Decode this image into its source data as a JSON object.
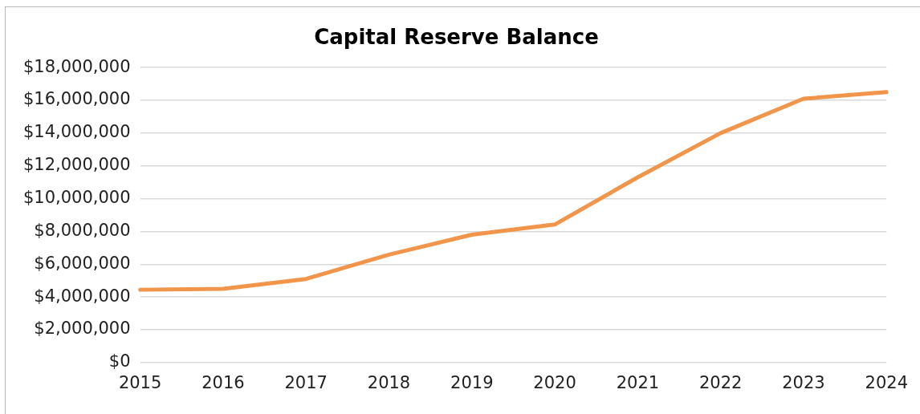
{
  "chart_data": {
    "type": "line",
    "title": "Capital Reserve Balance",
    "categories": [
      "2015",
      "2016",
      "2017",
      "2018",
      "2019",
      "2020",
      "2021",
      "2022",
      "2023",
      "2024"
    ],
    "series": [
      {
        "color": "#f0954a",
        "values": [
          4440000,
          4490000,
          5100000,
          6580000,
          7800000,
          8420000,
          11300000,
          14000000,
          16100000,
          16500000
        ]
      }
    ],
    "ylim": [
      0,
      18000000
    ],
    "yticks": [
      {
        "value": 0,
        "label": "$0"
      },
      {
        "value": 2000000,
        "label": "$2,000,000"
      },
      {
        "value": 4000000,
        "label": "$4,000,000"
      },
      {
        "value": 6000000,
        "label": "$6,000,000"
      },
      {
        "value": 8000000,
        "label": "$8,000,000"
      },
      {
        "value": 10000000,
        "label": "$10,000,000"
      },
      {
        "value": 12000000,
        "label": "$12,000,000"
      },
      {
        "value": 14000000,
        "label": "$14,000,000"
      },
      {
        "value": 16000000,
        "label": "$16,000,000"
      },
      {
        "value": 18000000,
        "label": "$18,000,000"
      }
    ],
    "grid": "y",
    "legend": false,
    "marker": "none",
    "line_style": "solid"
  }
}
